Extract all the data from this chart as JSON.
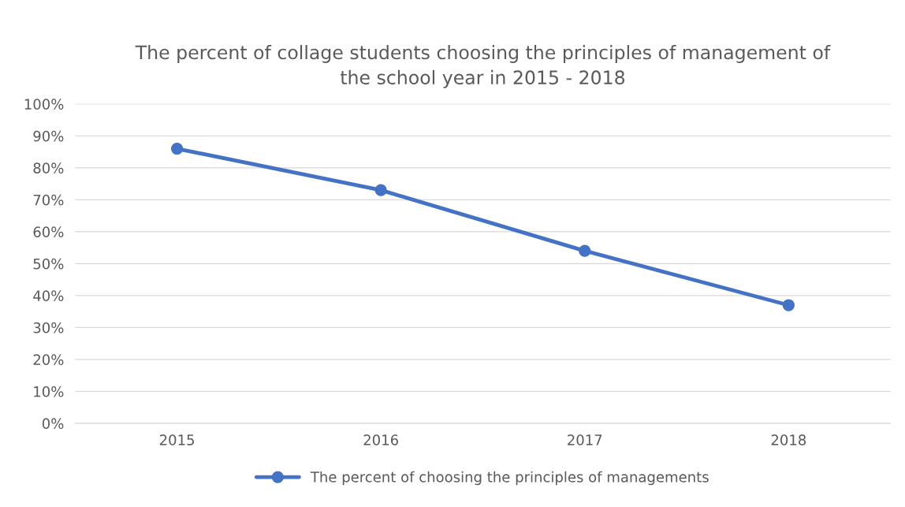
{
  "chart_data": {
    "type": "line",
    "title": "The percent of collage students choosing the principles of management of\nthe school year in 2015 - 2018",
    "categories": [
      "2015",
      "2016",
      "2017",
      "2018"
    ],
    "series": [
      {
        "name": "The percent of choosing the principles of managements",
        "color": "#4472c4",
        "values": [
          86,
          73,
          54,
          37
        ]
      }
    ],
    "ylim": [
      0,
      100
    ],
    "yticks": [
      {
        "value": 0,
        "label": "0%"
      },
      {
        "value": 10,
        "label": "10%"
      },
      {
        "value": 20,
        "label": "20%"
      },
      {
        "value": 30,
        "label": "30%"
      },
      {
        "value": 40,
        "label": "40%"
      },
      {
        "value": 50,
        "label": "50%"
      },
      {
        "value": 60,
        "label": "60%"
      },
      {
        "value": 70,
        "label": "70%"
      },
      {
        "value": 80,
        "label": "80%"
      },
      {
        "value": 90,
        "label": "90%"
      },
      {
        "value": 100,
        "label": "100%"
      }
    ],
    "grid": "y",
    "legend": "bottom",
    "marker": "circle",
    "line_style": "solid"
  }
}
